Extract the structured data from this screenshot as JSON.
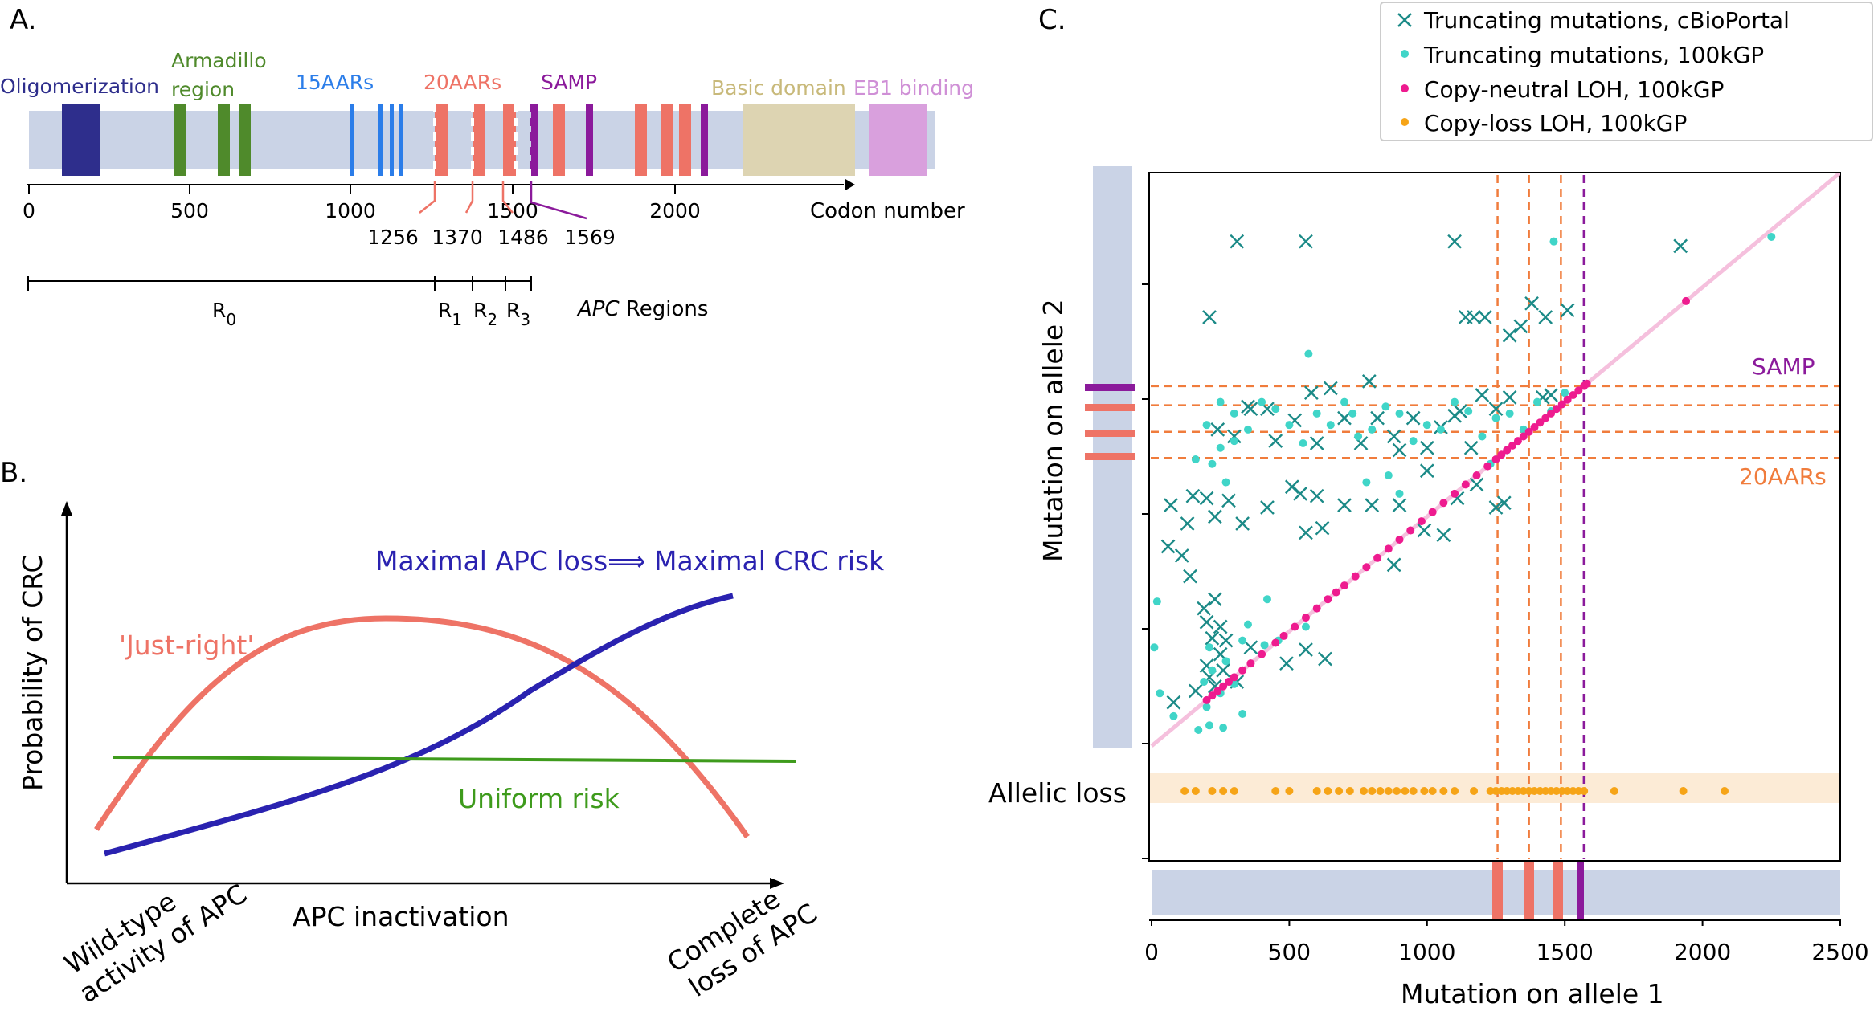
{
  "panelA": {
    "letter": "A.",
    "domains": [
      {
        "label": "Oligomerization",
        "color": "#2e2e8c"
      },
      {
        "label": "Armadillo",
        "label2": "region",
        "color": "#4f8a2b"
      },
      {
        "label": "15AARs",
        "color": "#2b7de9"
      },
      {
        "label": "20AARs",
        "color": "#ee7366"
      },
      {
        "label": "SAMP",
        "color": "#8b1a9b"
      },
      {
        "label": "Basic domain",
        "color": "#ddd4b2"
      },
      {
        "label": "EB1 binding",
        "color": "#d9a0dd"
      }
    ],
    "axis_ticks": [
      "0",
      "500",
      "1000",
      "1500",
      "2000"
    ],
    "axis_label": "Codon number",
    "boundary_codons": [
      "1256",
      "1370",
      "1486",
      "1569"
    ],
    "regions": {
      "labels": [
        "R",
        "R",
        "R",
        "R"
      ],
      "subscripts": [
        "0",
        "1",
        "2",
        "3"
      ],
      "title_italic": "APC",
      "title_rest": " Regions"
    }
  },
  "panelB": {
    "letter": "B.",
    "ylabel": "Probability of CRC",
    "xlabel": "APC inactivation",
    "x_left": [
      "Wild-type",
      "activity of APC"
    ],
    "x_right": [
      "Complete",
      "loss of APC"
    ],
    "curve_labels": {
      "just_right": "'Just-right'",
      "maximal": "Maximal APC loss⟹ Maximal CRC risk",
      "uniform": "Uniform risk"
    },
    "colors": {
      "just_right": "#ee7366",
      "maximal": "#2a22b0",
      "uniform": "#3e9b1c"
    }
  },
  "panelC": {
    "letter": "C.",
    "legend": [
      {
        "label": "Truncating mutations, cBioPortal",
        "marker": "x",
        "color": "#1b8a87"
      },
      {
        "label": "Truncating mutations, 100kGP",
        "marker": "dot",
        "color": "#40d5c8"
      },
      {
        "label": "Copy-neutral LOH, 100kGP",
        "marker": "dot",
        "color": "#ee1b8f"
      },
      {
        "label": "Copy-loss LOH, 100kGP",
        "marker": "dot",
        "color": "#f6a417"
      }
    ],
    "xlabel": "Mutation on allele 1",
    "ylabel": "Mutation on allele 2",
    "x_ticks": [
      "0",
      "500",
      "1000",
      "1500",
      "2000",
      "2500"
    ],
    "allelic_loss_label": "Allelic loss",
    "samp_label": "SAMP",
    "aars_label": "20AARs"
  },
  "chart_data": {
    "type": "scatter",
    "title": "",
    "xlabel": "Mutation on allele 1",
    "ylabel": "Mutation on allele 2",
    "xlim": [
      0,
      2500
    ],
    "ylim": [
      0,
      2500
    ],
    "x_ticks": [
      0,
      500,
      1000,
      1500,
      2000,
      2500
    ],
    "reference_lines": {
      "vertical_20AARs": [
        1256,
        1370,
        1486
      ],
      "vertical_SAMP": 1569,
      "horizontal": [
        1256,
        1370,
        1486,
        1569
      ],
      "diagonal": "y = x"
    },
    "legend_position": "top-right",
    "series": [
      {
        "name": "Truncating mutations, cBioPortal",
        "points": [
          [
            310,
            2200
          ],
          [
            560,
            2200
          ],
          [
            1100,
            2200
          ],
          [
            1920,
            2180
          ],
          [
            210,
            1870
          ],
          [
            1140,
            1870
          ],
          [
            1170,
            1870
          ],
          [
            1210,
            1870
          ],
          [
            1430,
            1870
          ],
          [
            1510,
            1900
          ],
          [
            1340,
            1830
          ],
          [
            1300,
            1790
          ],
          [
            1380,
            1930
          ],
          [
            420,
            1470
          ],
          [
            580,
            1540
          ],
          [
            650,
            1560
          ],
          [
            790,
            1590
          ],
          [
            350,
            1480
          ],
          [
            880,
            1350
          ],
          [
            950,
            1430
          ],
          [
            1050,
            1390
          ],
          [
            1120,
            1460
          ],
          [
            1200,
            1530
          ],
          [
            1250,
            1470
          ],
          [
            1300,
            1520
          ],
          [
            1420,
            1520
          ],
          [
            1450,
            1530
          ],
          [
            240,
            1380
          ],
          [
            300,
            1350
          ],
          [
            360,
            1470
          ],
          [
            450,
            1330
          ],
          [
            520,
            1420
          ],
          [
            600,
            1320
          ],
          [
            700,
            1430
          ],
          [
            760,
            1320
          ],
          [
            820,
            1430
          ],
          [
            900,
            1290
          ],
          [
            1000,
            1300
          ],
          [
            1100,
            1440
          ],
          [
            1160,
            1300
          ],
          [
            70,
            1050
          ],
          [
            200,
            1080
          ],
          [
            280,
            1070
          ],
          [
            130,
            970
          ],
          [
            150,
            1090
          ],
          [
            230,
            1000
          ],
          [
            330,
            970
          ],
          [
            420,
            1040
          ],
          [
            510,
            1130
          ],
          [
            560,
            930
          ],
          [
            620,
            950
          ],
          [
            1110,
            1080
          ],
          [
            1180,
            1140
          ],
          [
            1060,
            920
          ],
          [
            1250,
            1040
          ],
          [
            1280,
            1060
          ],
          [
            540,
            1100
          ],
          [
            600,
            1090
          ],
          [
            700,
            1050
          ],
          [
            800,
            1050
          ],
          [
            900,
            1050
          ],
          [
            1000,
            1200
          ],
          [
            60,
            870
          ],
          [
            110,
            830
          ],
          [
            140,
            740
          ],
          [
            190,
            600
          ],
          [
            230,
            640
          ],
          [
            200,
            540
          ],
          [
            250,
            520
          ],
          [
            220,
            470
          ],
          [
            270,
            460
          ],
          [
            360,
            430
          ],
          [
            490,
            360
          ],
          [
            560,
            420
          ],
          [
            630,
            380
          ],
          [
            990,
            940
          ],
          [
            880,
            790
          ],
          [
            160,
            240
          ],
          [
            80,
            190
          ],
          [
            310,
            280
          ],
          [
            200,
            350
          ],
          [
            250,
            400
          ],
          [
            210,
            300
          ],
          [
            230,
            260
          ],
          [
            260,
            330
          ]
        ]
      },
      {
        "name": "Truncating mutations, 100kGP",
        "points": [
          [
            1460,
            2200
          ],
          [
            2250,
            2220
          ],
          [
            570,
            1710
          ],
          [
            250,
            1500
          ],
          [
            300,
            1450
          ],
          [
            400,
            1500
          ],
          [
            500,
            1400
          ],
          [
            600,
            1450
          ],
          [
            700,
            1500
          ],
          [
            800,
            1380
          ],
          [
            900,
            1450
          ],
          [
            1000,
            1400
          ],
          [
            1100,
            1500
          ],
          [
            1200,
            1350
          ],
          [
            1300,
            1450
          ],
          [
            1400,
            1500
          ],
          [
            1500,
            1540
          ],
          [
            200,
            1400
          ],
          [
            250,
            1300
          ],
          [
            350,
            1380
          ],
          [
            450,
            1470
          ],
          [
            550,
            1320
          ],
          [
            650,
            1400
          ],
          [
            750,
            1350
          ],
          [
            850,
            1480
          ],
          [
            950,
            1330
          ],
          [
            1050,
            1380
          ],
          [
            1150,
            1460
          ],
          [
            1250,
            1430
          ],
          [
            1350,
            1380
          ],
          [
            1450,
            1460
          ],
          [
            220,
            1230
          ],
          [
            270,
            1150
          ],
          [
            300,
            1330
          ],
          [
            160,
            1250
          ],
          [
            20,
            630
          ],
          [
            10,
            430
          ],
          [
            30,
            230
          ],
          [
            80,
            130
          ],
          [
            170,
            70
          ],
          [
            210,
            90
          ],
          [
            260,
            80
          ],
          [
            330,
            140
          ],
          [
            200,
            170
          ],
          [
            190,
            280
          ],
          [
            220,
            330
          ],
          [
            250,
            230
          ],
          [
            270,
            370
          ],
          [
            300,
            270
          ],
          [
            210,
            430
          ],
          [
            330,
            460
          ],
          [
            350,
            530
          ],
          [
            410,
            440
          ],
          [
            420,
            640
          ],
          [
            460,
            460
          ],
          [
            560,
            520
          ],
          [
            730,
            1450
          ],
          [
            860,
            1180
          ],
          [
            780,
            1150
          ],
          [
            900,
            1100
          ],
          [
            1230,
            1230
          ],
          [
            1290,
            1290
          ]
        ]
      },
      {
        "name": "Copy-neutral LOH, 100kGP",
        "points": [
          [
            200,
            200
          ],
          [
            220,
            220
          ],
          [
            240,
            240
          ],
          [
            260,
            260
          ],
          [
            280,
            280
          ],
          [
            300,
            300
          ],
          [
            330,
            330
          ],
          [
            360,
            360
          ],
          [
            400,
            400
          ],
          [
            450,
            450
          ],
          [
            480,
            480
          ],
          [
            520,
            520
          ],
          [
            560,
            560
          ],
          [
            600,
            600
          ],
          [
            640,
            640
          ],
          [
            670,
            670
          ],
          [
            700,
            700
          ],
          [
            740,
            740
          ],
          [
            780,
            780
          ],
          [
            820,
            820
          ],
          [
            860,
            860
          ],
          [
            900,
            900
          ],
          [
            940,
            940
          ],
          [
            980,
            980
          ],
          [
            1020,
            1020
          ],
          [
            1060,
            1060
          ],
          [
            1100,
            1100
          ],
          [
            1140,
            1140
          ],
          [
            1180,
            1180
          ],
          [
            1220,
            1220
          ],
          [
            1250,
            1250
          ],
          [
            1270,
            1270
          ],
          [
            1290,
            1290
          ],
          [
            1310,
            1310
          ],
          [
            1330,
            1330
          ],
          [
            1350,
            1350
          ],
          [
            1370,
            1370
          ],
          [
            1390,
            1390
          ],
          [
            1410,
            1410
          ],
          [
            1430,
            1430
          ],
          [
            1450,
            1450
          ],
          [
            1470,
            1470
          ],
          [
            1490,
            1490
          ],
          [
            1510,
            1510
          ],
          [
            1530,
            1530
          ],
          [
            1550,
            1550
          ],
          [
            1570,
            1570
          ],
          [
            1580,
            1580
          ],
          [
            1940,
            1940
          ]
        ]
      },
      {
        "name": "Copy-loss LOH, 100kGP",
        "points": [
          [
            120,
            0
          ],
          [
            160,
            0
          ],
          [
            220,
            0
          ],
          [
            260,
            0
          ],
          [
            300,
            0
          ],
          [
            450,
            0
          ],
          [
            500,
            0
          ],
          [
            600,
            0
          ],
          [
            640,
            0
          ],
          [
            680,
            0
          ],
          [
            720,
            0
          ],
          [
            770,
            0
          ],
          [
            800,
            0
          ],
          [
            830,
            0
          ],
          [
            860,
            0
          ],
          [
            890,
            0
          ],
          [
            920,
            0
          ],
          [
            950,
            0
          ],
          [
            990,
            0
          ],
          [
            1020,
            0
          ],
          [
            1060,
            0
          ],
          [
            1100,
            0
          ],
          [
            1170,
            0
          ],
          [
            1230,
            0
          ],
          [
            1250,
            0
          ],
          [
            1270,
            0
          ],
          [
            1290,
            0
          ],
          [
            1310,
            0
          ],
          [
            1330,
            0
          ],
          [
            1350,
            0
          ],
          [
            1370,
            0
          ],
          [
            1390,
            0
          ],
          [
            1410,
            0
          ],
          [
            1430,
            0
          ],
          [
            1450,
            0
          ],
          [
            1470,
            0
          ],
          [
            1490,
            0
          ],
          [
            1510,
            0
          ],
          [
            1530,
            0
          ],
          [
            1550,
            0
          ],
          [
            1570,
            0
          ],
          [
            1680,
            0
          ],
          [
            1930,
            0
          ],
          [
            2080,
            0
          ]
        ]
      }
    ]
  }
}
